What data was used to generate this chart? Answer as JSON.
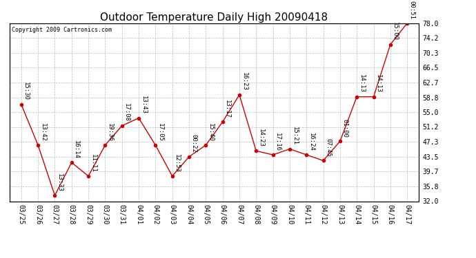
{
  "title": "Outdoor Temperature Daily High 20090418",
  "copyright": "Copyright 2009 Cartronics.com",
  "x_labels": [
    "03/25",
    "03/26",
    "03/27",
    "03/28",
    "03/29",
    "03/30",
    "03/31",
    "04/01",
    "04/02",
    "04/03",
    "04/04",
    "04/05",
    "04/06",
    "04/07",
    "04/08",
    "04/09",
    "04/10",
    "04/11",
    "04/12",
    "04/13",
    "04/14",
    "04/15",
    "04/16",
    "04/17"
  ],
  "y_values": [
    57.0,
    46.5,
    33.5,
    42.0,
    38.5,
    46.5,
    51.5,
    53.5,
    46.5,
    38.5,
    43.5,
    46.5,
    52.5,
    59.5,
    45.0,
    44.0,
    45.5,
    44.0,
    42.5,
    47.5,
    59.0,
    59.0,
    72.5,
    78.0
  ],
  "time_labels": [
    "15:30",
    "13:42",
    "13:33",
    "16:14",
    "11:11",
    "19:36",
    "17:08",
    "13:43",
    "17:05",
    "12:53",
    "00:22",
    "15:40",
    "13:17",
    "16:23",
    "14:23",
    "17:16",
    "15:21",
    "16:24",
    "07:45",
    "01:00",
    "14:13",
    "14:13",
    "15:00",
    "00:51"
  ],
  "line_color": "#cc0000",
  "marker_color": "#cc0000",
  "background_color": "#ffffff",
  "grid_color": "#bbbbbb",
  "y_ticks": [
    32.0,
    35.8,
    39.7,
    43.5,
    47.3,
    51.2,
    55.0,
    58.8,
    62.7,
    66.5,
    70.3,
    74.2,
    78.0
  ],
  "title_fontsize": 11,
  "label_fontsize": 6.5,
  "copyright_fontsize": 6,
  "tick_fontsize": 7
}
